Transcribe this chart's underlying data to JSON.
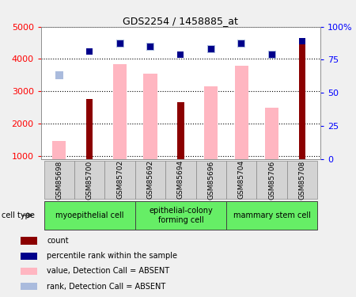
{
  "title": "GDS2254 / 1458885_at",
  "samples": [
    "GSM85698",
    "GSM85700",
    "GSM85702",
    "GSM85692",
    "GSM85694",
    "GSM85696",
    "GSM85704",
    "GSM85706",
    "GSM85708"
  ],
  "count_bars": {
    "GSM85700": 2750,
    "GSM85694": 2650,
    "GSM85708": 4480
  },
  "absent_value_bars": {
    "GSM85698": 1450,
    "GSM85702": 3850,
    "GSM85692": 3550,
    "GSM85696": 3150,
    "GSM85704": 3800,
    "GSM85706": 2480
  },
  "percentile_rank": {
    "GSM85700": 81,
    "GSM85702": 87,
    "GSM85692": 85,
    "GSM85694": 79,
    "GSM85696": 83,
    "GSM85704": 87,
    "GSM85706": 79,
    "GSM85708": 89
  },
  "absent_rank": {
    "GSM85698": 63,
    "GSM85702": 87,
    "GSM85692": 85,
    "GSM85696": 83,
    "GSM85704": 87,
    "GSM85706": 79
  },
  "ylim_left": [
    900,
    5000
  ],
  "ylim_right": [
    0,
    100
  ],
  "yticks_left": [
    1000,
    2000,
    3000,
    4000,
    5000
  ],
  "yticks_right": [
    0,
    25,
    50,
    75,
    100
  ],
  "ytick_labels_right": [
    "0",
    "25",
    "50",
    "75",
    "100%"
  ],
  "count_color": "#8B0000",
  "absent_value_color": "#FFB6C1",
  "percentile_color": "#00008B",
  "absent_rank_color": "#AABBDD",
  "bg_color": "#F0F0F0",
  "plot_bg": "#FFFFFF",
  "cell_type_bg": "#66EE66",
  "sample_bg": "#D3D3D3",
  "cell_groups": [
    {
      "label": "myoepithelial cell",
      "start": 0,
      "end": 2
    },
    {
      "label": "epithelial-colony\nforming cell",
      "start": 3,
      "end": 5
    },
    {
      "label": "mammary stem cell",
      "start": 6,
      "end": 8
    }
  ]
}
